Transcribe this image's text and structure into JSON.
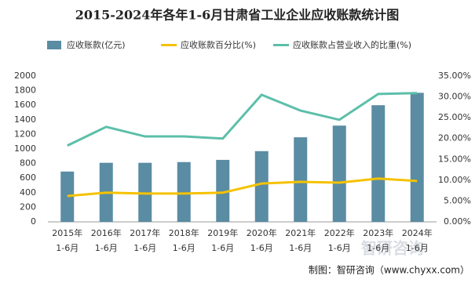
{
  "chart_data": {
    "type": "bar-line",
    "title": "2015-2024年各年1-6月甘肃省工业企业应收账款统计图",
    "categories": [
      [
        "2015年",
        "1-6月"
      ],
      [
        "2016年",
        "1-6月"
      ],
      [
        "2017年",
        "1-6月"
      ],
      [
        "2018年",
        "1-6月"
      ],
      [
        "2019年",
        "1-6月"
      ],
      [
        "2020年",
        "1-6月"
      ],
      [
        "2021年",
        "1-6月"
      ],
      [
        "2022年",
        "1-6月"
      ],
      [
        "2023年",
        "1-6月"
      ],
      [
        "2024年",
        "1-6月"
      ]
    ],
    "series": [
      {
        "name": "应收账款(亿元)",
        "color": "#5a8ca3",
        "type": "bar",
        "values": [
          690,
          810,
          810,
          820,
          850,
          970,
          1160,
          1320,
          1600,
          1770
        ]
      },
      {
        "name": "应收账款百分比(%)",
        "color": "#f5c200",
        "type": "line",
        "axis": "y2",
        "values": [
          6.2,
          7.0,
          6.8,
          6.8,
          7.0,
          9.2,
          9.6,
          9.4,
          10.4,
          9.8
        ]
      },
      {
        "name": "应收账款占营业收入的比重(%)",
        "color": "#5cbfaa",
        "type": "line",
        "axis": "y2",
        "values": [
          18.3,
          22.8,
          20.5,
          20.5,
          20.0,
          30.5,
          26.7,
          24.5,
          30.7,
          30.9
        ]
      }
    ],
    "ylim": [
      0,
      2000
    ],
    "yticks": [
      0,
      200,
      400,
      600,
      800,
      1000,
      1200,
      1400,
      1600,
      1800,
      2000
    ],
    "y2lim": [
      0,
      35
    ],
    "y2ticks": [
      {
        "value": 0,
        "label": "0.00%"
      },
      {
        "value": 5,
        "label": "5.00%"
      },
      {
        "value": 10,
        "label": "10.00%"
      },
      {
        "value": 15,
        "label": "15.00%"
      },
      {
        "value": 20,
        "label": "20.00%"
      },
      {
        "value": 25,
        "label": "25.00%"
      },
      {
        "value": 30,
        "label": "30.00%"
      },
      {
        "value": 35,
        "label": "35.00%"
      }
    ],
    "watermark": "智研咨询",
    "source": "制图：智研咨询（www.chyxx.com）"
  }
}
